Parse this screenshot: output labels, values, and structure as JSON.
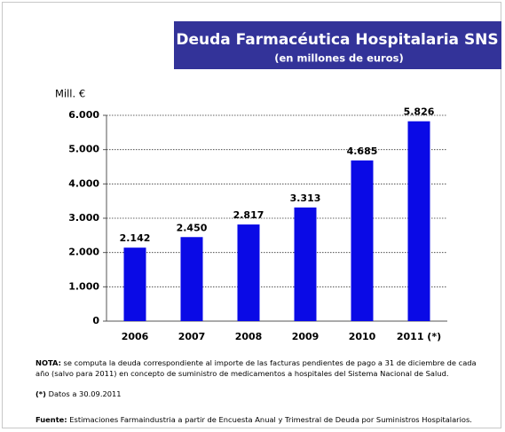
{
  "chart_data": {
    "type": "bar",
    "title": "Deuda Farmacéutica Hospitalaria  SNS",
    "subtitle": "(en millones de euros)",
    "y_label": "Mill. €",
    "categories": [
      "2006",
      "2007",
      "2008",
      "2009",
      "2010",
      "2011 (*)"
    ],
    "values": [
      2142,
      2450,
      2817,
      3313,
      4685,
      5826
    ],
    "value_labels": [
      "2.142",
      "2.450",
      "2.817",
      "3.313",
      "4.685",
      "5.826"
    ],
    "color": "#0a0ae6",
    "ylim": [
      0,
      6000
    ],
    "yticks": [
      0,
      {
        "value": 1000,
        "label": "1.000"
      },
      {
        "value": 2000,
        "label": "2.000"
      },
      {
        "value": 3000,
        "label": "3.000"
      },
      {
        "value": 4000,
        "label": "4.000"
      },
      {
        "value": 5000,
        "label": "5.000"
      },
      {
        "value": 6000,
        "label": "6.000"
      }
    ],
    "grid": true
  },
  "notes": {
    "nota_label": "NOTA:",
    "nota_text": "se computa la deuda correspondiente al importe de las facturas pendientes de pago a 31 de diciembre de cada año (salvo para 2011) en concepto de suministro de medicamentos a hospitales del Sistema Nacional de Salud.",
    "asterisk_label": "(*)",
    "asterisk_text": "Datos a 30.09.2011",
    "source_label": "Fuente:",
    "source_text": "Estimaciones Farmaindustria a partir de Encuesta Anual y Trimestral de Deuda por Suministros Hospitalarios."
  }
}
